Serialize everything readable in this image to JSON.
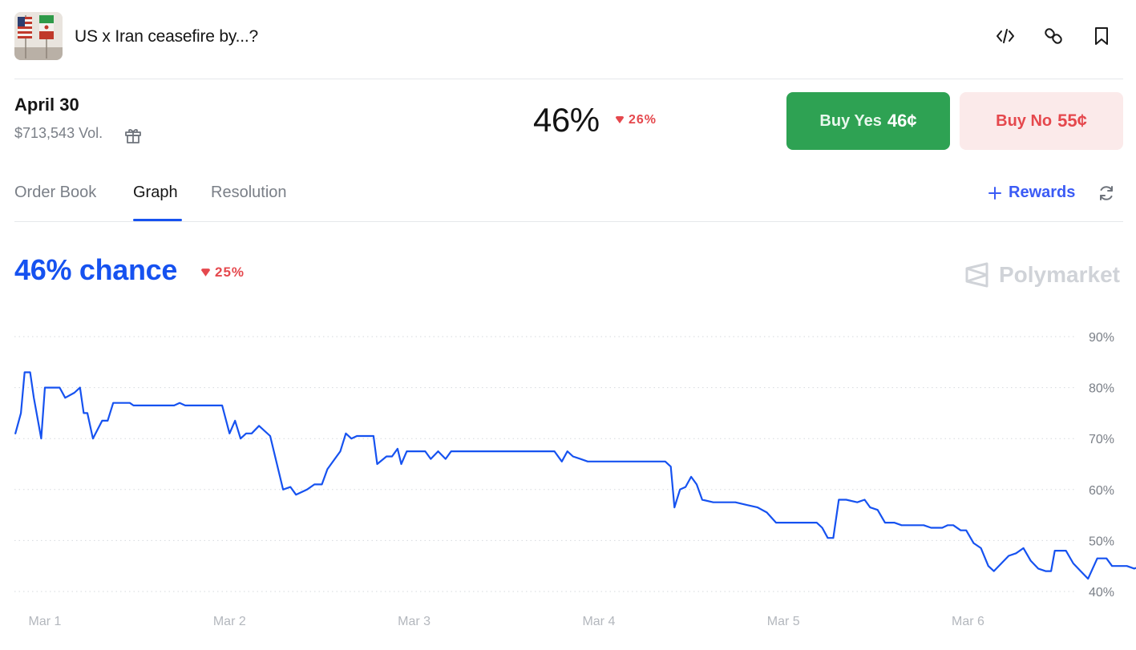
{
  "market": {
    "title": "US x Iran ceasefire by...?",
    "thumbnail_alt": "flags-image"
  },
  "header_icons": [
    "embed-code-icon",
    "link-icon",
    "bookmark-icon"
  ],
  "outcome": {
    "date_label": "April 30",
    "volume": "$713,543 Vol.",
    "price_pct": "46%",
    "change": "26%",
    "change_direction": "down"
  },
  "buttons": {
    "buy_yes_label": "Buy Yes",
    "buy_yes_price": "46¢",
    "buy_no_label": "Buy No",
    "buy_no_price": "55¢"
  },
  "tabs": [
    {
      "label": "Order Book",
      "active": false
    },
    {
      "label": "Graph",
      "active": true
    },
    {
      "label": "Resolution",
      "active": false
    }
  ],
  "rewards_label": "Rewards",
  "graph": {
    "chance_label": "46% chance",
    "change": "25%",
    "brand": "Polymarket"
  },
  "colors": {
    "accent": "#1652f0",
    "yes": "#2ea253",
    "no_bg": "#fbeaea",
    "down": "#e5484d"
  },
  "chart_data": {
    "type": "line",
    "ylim": [
      40,
      90
    ],
    "y_ticks": [
      "90%",
      "80%",
      "70%",
      "60%",
      "50%",
      "40%"
    ],
    "y_tick_values": [
      90,
      80,
      70,
      60,
      50,
      40
    ],
    "x_ticks": [
      "Mar 1",
      "Mar 2",
      "Mar 3",
      "Mar 4",
      "Mar 5",
      "Mar 6"
    ],
    "x_tick_values": [
      0,
      1,
      2,
      3,
      4,
      5
    ],
    "grid": true,
    "series": [
      {
        "color": "#1652f0",
        "points": [
          [
            -0.16,
            71
          ],
          [
            -0.13,
            75
          ],
          [
            -0.11,
            83
          ],
          [
            -0.08,
            83
          ],
          [
            -0.06,
            78
          ],
          [
            -0.02,
            70
          ],
          [
            0.0,
            80
          ],
          [
            0.08,
            80
          ],
          [
            0.11,
            78
          ],
          [
            0.16,
            79
          ],
          [
            0.19,
            80
          ],
          [
            0.21,
            75
          ],
          [
            0.23,
            75
          ],
          [
            0.26,
            70
          ],
          [
            0.31,
            73.5
          ],
          [
            0.34,
            73.5
          ],
          [
            0.37,
            77
          ],
          [
            0.46,
            77
          ],
          [
            0.48,
            76.5
          ],
          [
            0.7,
            76.5
          ],
          [
            0.73,
            77
          ],
          [
            0.76,
            76.5
          ],
          [
            0.96,
            76.5
          ],
          [
            1.0,
            71
          ],
          [
            1.03,
            73.5
          ],
          [
            1.06,
            70
          ],
          [
            1.09,
            71
          ],
          [
            1.12,
            71
          ],
          [
            1.16,
            72.5
          ],
          [
            1.22,
            70.5
          ],
          [
            1.25,
            66
          ],
          [
            1.29,
            60
          ],
          [
            1.33,
            60.5
          ],
          [
            1.36,
            59
          ],
          [
            1.42,
            60
          ],
          [
            1.46,
            61
          ],
          [
            1.5,
            61
          ],
          [
            1.53,
            64
          ],
          [
            1.57,
            66
          ],
          [
            1.6,
            67.5
          ],
          [
            1.63,
            71
          ],
          [
            1.66,
            70
          ],
          [
            1.69,
            70.5
          ],
          [
            1.78,
            70.5
          ],
          [
            1.8,
            65
          ],
          [
            1.85,
            66.5
          ],
          [
            1.88,
            66.5
          ],
          [
            1.91,
            68
          ],
          [
            1.93,
            65
          ],
          [
            1.96,
            67.5
          ],
          [
            2.06,
            67.5
          ],
          [
            2.09,
            66
          ],
          [
            2.13,
            67.5
          ],
          [
            2.17,
            66
          ],
          [
            2.2,
            67.5
          ],
          [
            2.76,
            67.5
          ],
          [
            2.8,
            65.5
          ],
          [
            2.83,
            67.5
          ],
          [
            2.86,
            66.5
          ],
          [
            2.9,
            66
          ],
          [
            2.94,
            65.5
          ],
          [
            3.36,
            65.5
          ],
          [
            3.39,
            64.5
          ],
          [
            3.41,
            56.5
          ],
          [
            3.44,
            60
          ],
          [
            3.47,
            60.5
          ],
          [
            3.5,
            62.5
          ],
          [
            3.53,
            61
          ],
          [
            3.56,
            58
          ],
          [
            3.62,
            57.5
          ],
          [
            3.69,
            57.5
          ],
          [
            3.74,
            57.5
          ],
          [
            3.8,
            57
          ],
          [
            3.86,
            56.5
          ],
          [
            3.91,
            55.5
          ],
          [
            3.96,
            53.5
          ],
          [
            4.18,
            53.5
          ],
          [
            4.21,
            52.5
          ],
          [
            4.24,
            50.5
          ],
          [
            4.27,
            50.5
          ],
          [
            4.3,
            58
          ],
          [
            4.34,
            58
          ],
          [
            4.4,
            57.5
          ],
          [
            4.44,
            58
          ],
          [
            4.47,
            56.5
          ],
          [
            4.51,
            56
          ],
          [
            4.55,
            53.5
          ],
          [
            4.6,
            53.5
          ],
          [
            4.64,
            53
          ],
          [
            4.67,
            53
          ],
          [
            4.7,
            53
          ],
          [
            4.73,
            53
          ],
          [
            4.76,
            53
          ],
          [
            4.8,
            52.5
          ],
          [
            4.86,
            52.5
          ],
          [
            4.89,
            53
          ],
          [
            4.92,
            53
          ],
          [
            4.96,
            52
          ],
          [
            4.99,
            52
          ],
          [
            5.03,
            49.5
          ],
          [
            5.07,
            48.5
          ],
          [
            5.11,
            45
          ],
          [
            5.14,
            44
          ],
          [
            5.18,
            45.5
          ],
          [
            5.22,
            47
          ],
          [
            5.26,
            47.5
          ],
          [
            5.3,
            48.5
          ],
          [
            5.34,
            46
          ],
          [
            5.38,
            44.5
          ],
          [
            5.42,
            44
          ],
          [
            5.45,
            44
          ],
          [
            5.47,
            48
          ],
          [
            5.53,
            48
          ],
          [
            5.57,
            45.5
          ],
          [
            5.61,
            44
          ],
          [
            5.65,
            42.5
          ],
          [
            5.7,
            46.5
          ],
          [
            5.75,
            46.5
          ],
          [
            5.78,
            45
          ],
          [
            5.86,
            45
          ],
          [
            5.9,
            44.5
          ],
          [
            5.94,
            45
          ],
          [
            5.97,
            45
          ],
          [
            6.01,
            46.5
          ],
          [
            6.05,
            46.5
          ],
          [
            6.09,
            45.5
          ],
          [
            6.14,
            45.5
          ]
        ]
      }
    ]
  }
}
